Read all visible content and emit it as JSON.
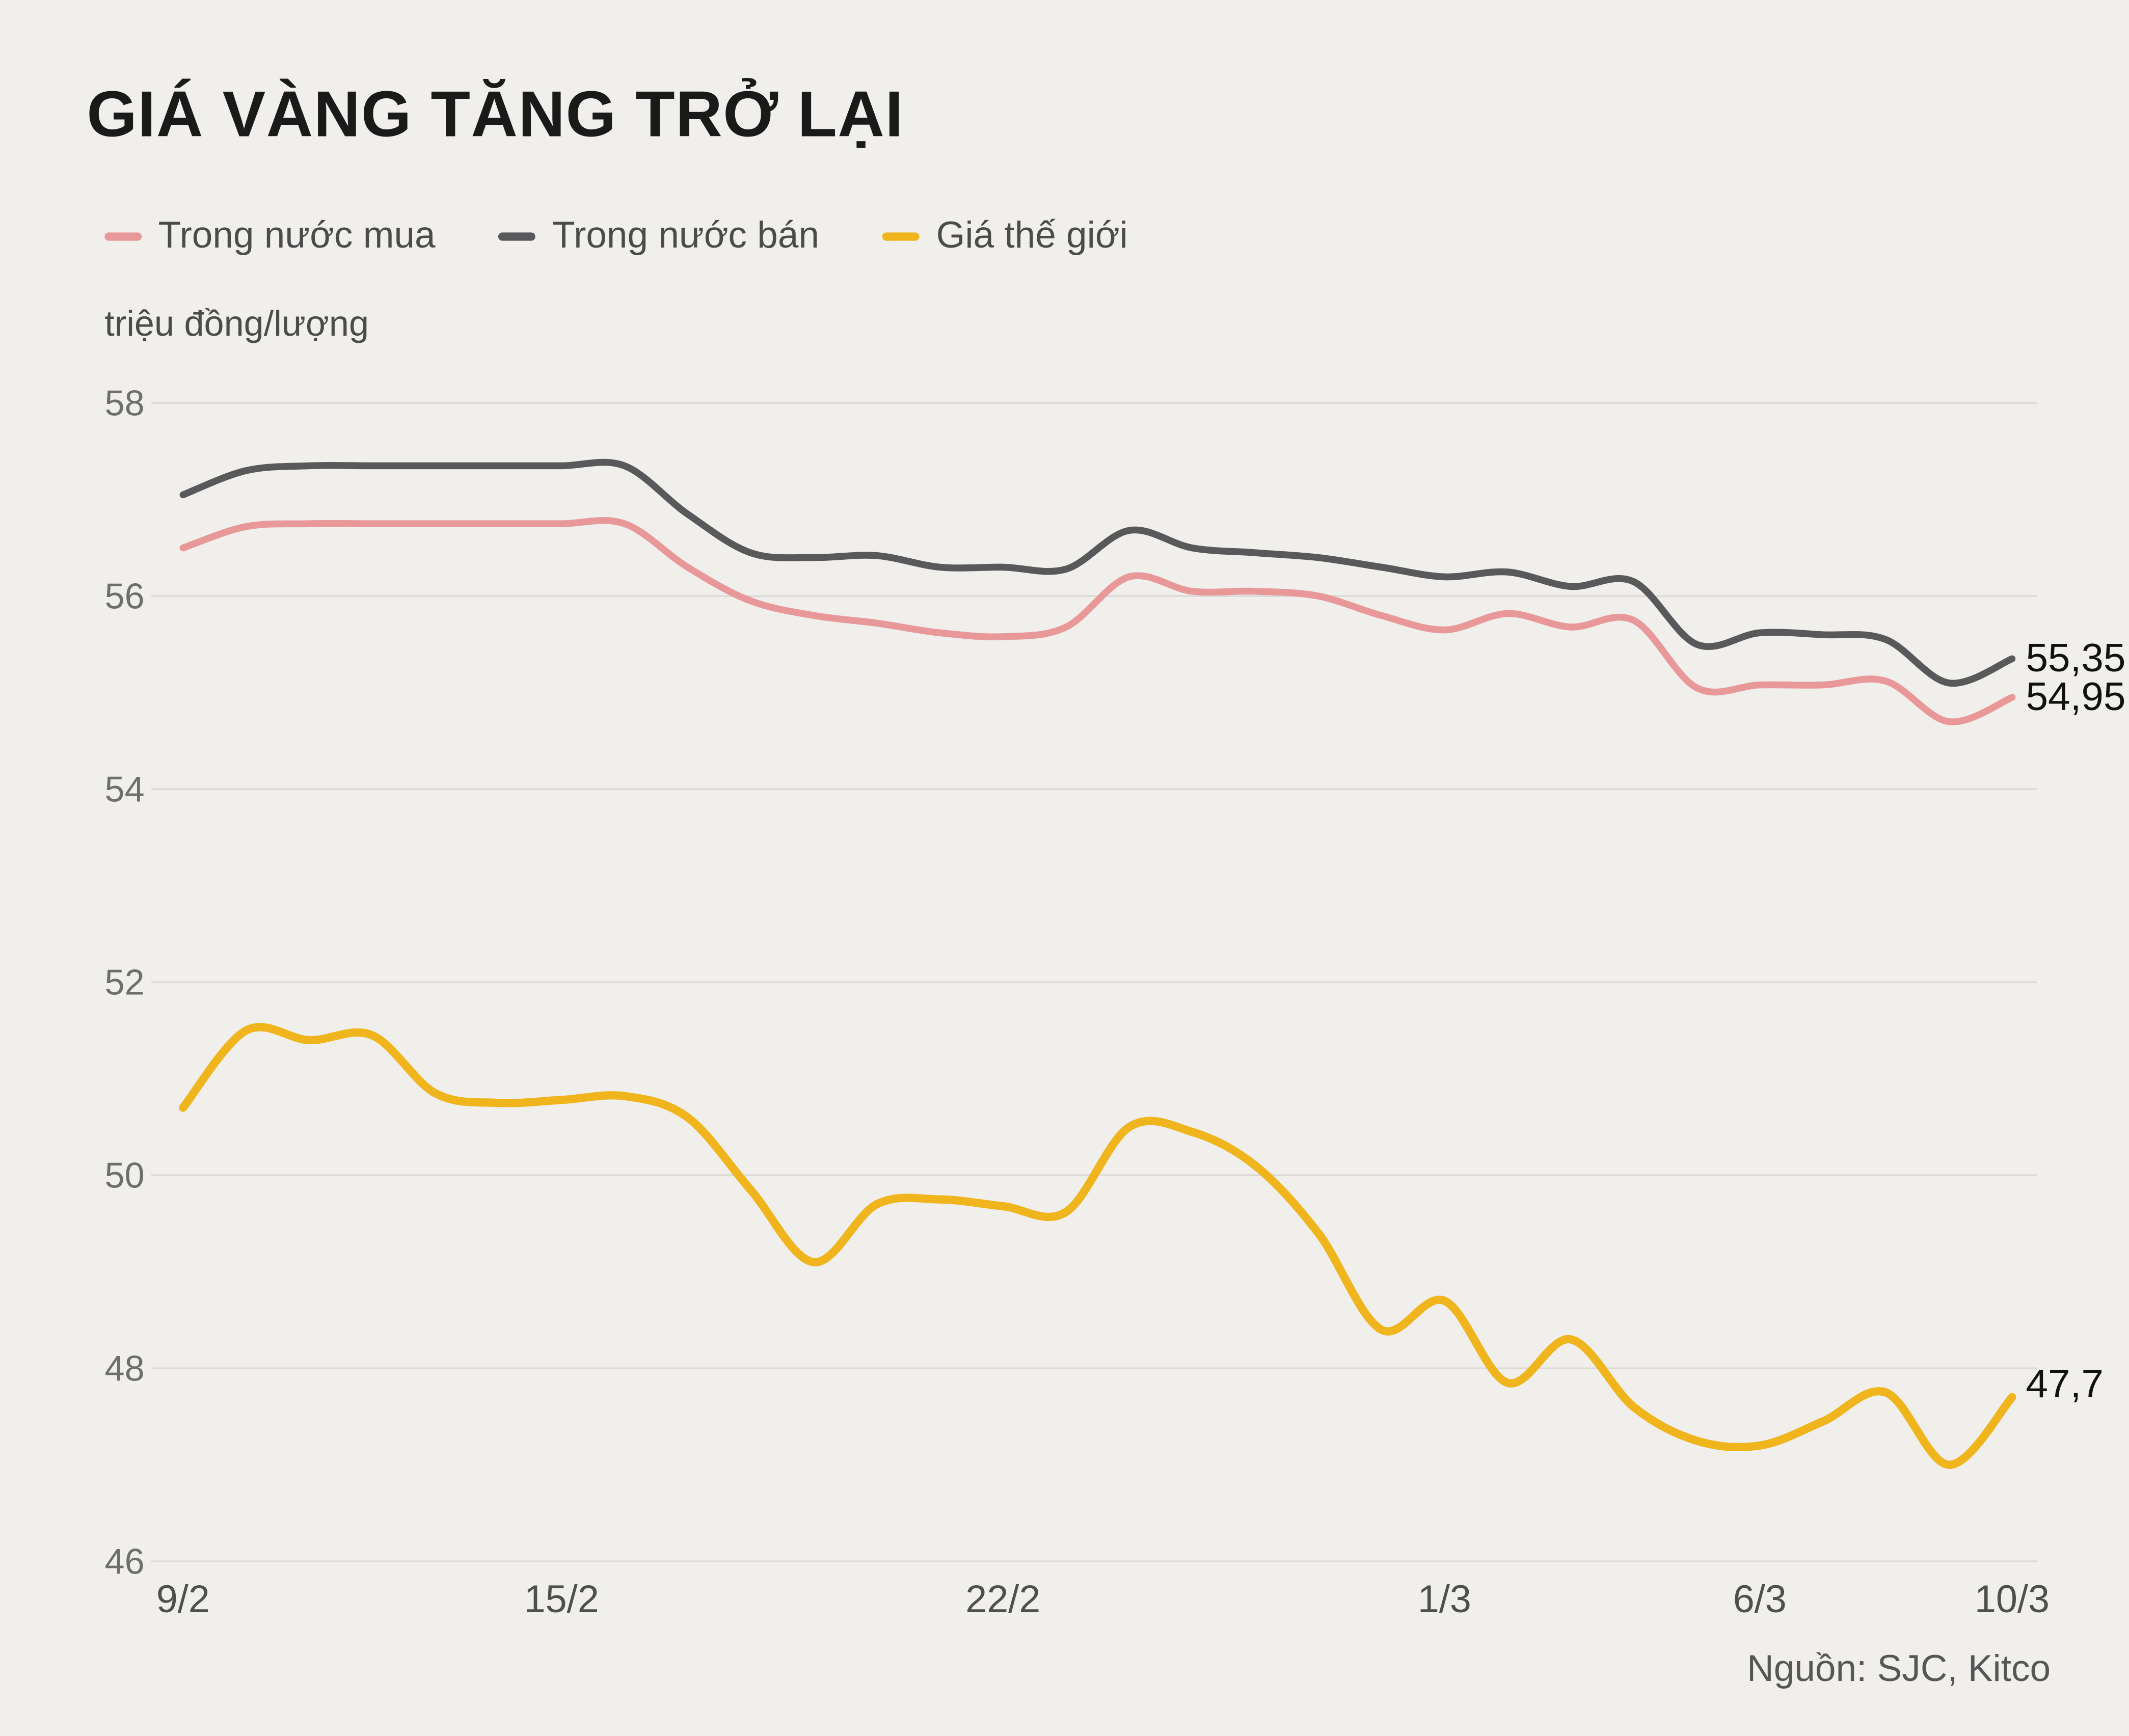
{
  "chart_data": {
    "type": "line",
    "title": "GIÁ VÀNG TĂNG TRỞ LẠI",
    "unit_label": "triệu đồng/lượng",
    "source": "Nguồn: SJC, Kitco",
    "colors": {
      "background": "#f0efec",
      "grid": "#dcdad7"
    },
    "ylim": [
      46,
      58
    ],
    "grid": true,
    "legend_position": "top-left",
    "y_ticks": [
      58,
      56,
      54,
      52,
      50,
      48,
      46
    ],
    "x_span_days": 29,
    "x_ticks": [
      {
        "label": "9/2",
        "day": 0
      },
      {
        "label": "15/2",
        "day": 6
      },
      {
        "label": "22/2",
        "day": 13
      },
      {
        "label": "1/3",
        "day": 20
      },
      {
        "label": "6/3",
        "day": 25
      },
      {
        "label": "10/3",
        "day": 29
      }
    ],
    "series": [
      {
        "name": "Trong nước mua",
        "color": "#e9989a",
        "end_label": "54,95",
        "end_value": 54.95,
        "values": [
          56.5,
          56.72,
          56.75,
          56.75,
          56.75,
          56.75,
          56.75,
          56.75,
          56.3,
          55.95,
          55.8,
          55.72,
          55.62,
          55.58,
          55.68,
          56.2,
          56.05,
          56.05,
          56.0,
          55.8,
          55.65,
          55.82,
          55.68,
          55.75,
          55.05,
          55.08,
          55.08,
          55.12,
          54.7,
          54.95
        ]
      },
      {
        "name": "Trong nước bán",
        "color": "#59595b",
        "end_label": "55,35",
        "end_value": 55.35,
        "values": [
          57.05,
          57.3,
          57.35,
          57.35,
          57.35,
          57.35,
          57.35,
          57.35,
          56.85,
          56.45,
          56.4,
          56.42,
          56.3,
          56.3,
          56.28,
          56.68,
          56.5,
          56.45,
          56.4,
          56.3,
          56.2,
          56.25,
          56.1,
          56.15,
          55.5,
          55.62,
          55.6,
          55.55,
          55.1,
          55.35
        ]
      },
      {
        "name": "Giá thế giới",
        "color": "#f0b41c",
        "end_label": "47,7",
        "end_value": 47.7,
        "values": [
          50.7,
          51.5,
          51.4,
          51.45,
          50.85,
          50.75,
          50.78,
          50.82,
          50.6,
          49.85,
          49.1,
          49.7,
          49.75,
          49.68,
          49.62,
          50.5,
          50.45,
          50.1,
          49.4,
          48.4,
          48.7,
          47.85,
          48.3,
          47.6,
          47.25,
          47.2,
          47.45,
          47.75,
          47.0,
          47.7
        ]
      }
    ]
  }
}
